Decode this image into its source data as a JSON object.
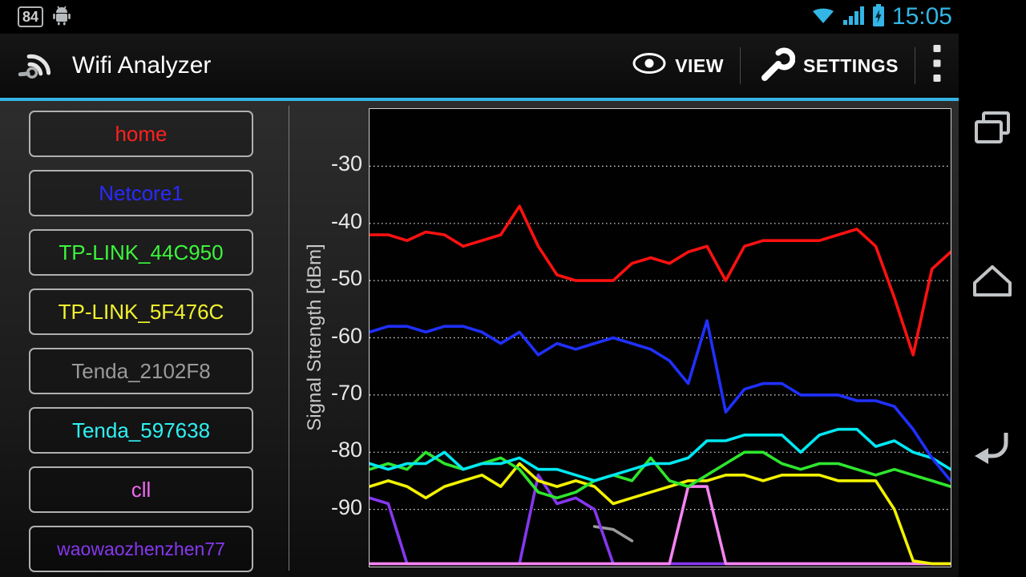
{
  "status_bar": {
    "badge": "84",
    "time": "15:05",
    "accent_color": "#33b5e5"
  },
  "action_bar": {
    "title": "Wifi Analyzer",
    "view_label": "VIEW",
    "settings_label": "SETTINGS"
  },
  "network_list": [
    {
      "label": "home",
      "color": "#ff2020"
    },
    {
      "label": "Netcore1",
      "color": "#2a2aff"
    },
    {
      "label": "TP-LINK_44C950",
      "color": "#3cf53c"
    },
    {
      "label": "TP-LINK_5F476C",
      "color": "#f2f22e"
    },
    {
      "label": "Tenda_2102F8",
      "color": "#9a9a9a"
    },
    {
      "label": "Tenda_597638",
      "color": "#2ef2f2"
    },
    {
      "label": "cll",
      "color": "#f06af0"
    },
    {
      "label": "waowaozhenzhen77",
      "color": "#8637f0"
    }
  ],
  "chart_data": {
    "type": "line",
    "title": "",
    "xlabel": "",
    "ylabel": "Signal Strength [dBm]",
    "yticks": [
      -30,
      -40,
      -50,
      -60,
      -70,
      -80,
      -90
    ],
    "ylim": [
      -100,
      -20
    ],
    "grid": "dotted-horizontal",
    "legend_position": "none",
    "background": "#010101",
    "series": [
      {
        "name": "Tenda_2102F8",
        "color": "#9a9a9a",
        "values": [
          null,
          null,
          null,
          null,
          null,
          null,
          null,
          null,
          null,
          null,
          null,
          null,
          -93,
          -93.5,
          -95.5,
          null,
          null,
          null,
          null,
          null,
          null,
          null,
          null,
          null,
          null,
          null,
          null,
          null,
          null,
          null,
          null,
          null
        ]
      },
      {
        "name": "waowaozhenzhen77",
        "color": "#8637f0",
        "values": [
          -88,
          -89,
          -99.5,
          -99.5,
          -99.5,
          -99.5,
          -99.5,
          -99.5,
          -99.5,
          -84,
          -89,
          -88,
          -90,
          -99.5,
          -99.5,
          -99.5,
          -99.5,
          -99.5,
          -99.5,
          -99.5,
          -99.5,
          -99.5,
          -99.5,
          -99.5,
          -99.5,
          -99.5,
          -99.5,
          -99.5,
          -99.5,
          -99.5,
          -99.5,
          -99.5
        ]
      },
      {
        "name": "cll",
        "color": "#f583f0",
        "values": [
          -99.5,
          -99.5,
          -99.5,
          -99.5,
          -99.5,
          -99.5,
          -99.5,
          -99.5,
          -99.5,
          -99.5,
          -99.5,
          -99.5,
          -99.5,
          -99.5,
          -99.5,
          -99.5,
          -99.5,
          -86,
          -86,
          -99.5,
          -99.5,
          -99.5,
          -99.5,
          -99.5,
          -99.5,
          -99.5,
          -99.5,
          -99.5,
          -99.5,
          -99.5,
          -99.5,
          -99.5
        ]
      },
      {
        "name": "TP-LINK_5F476C",
        "color": "#f2f200",
        "values": [
          -86,
          -85,
          -86,
          -88,
          -86,
          -85,
          -84,
          -86,
          -82,
          -85,
          -86,
          -85,
          -86,
          -89,
          -88,
          -87,
          -86,
          -85,
          -85,
          -84,
          -84,
          -85,
          -84,
          -84,
          -84,
          -85,
          -85,
          -85,
          -90,
          -99,
          -99.5,
          -99.5
        ]
      },
      {
        "name": "TP-LINK_44C950",
        "color": "#2ee62e",
        "values": [
          -83,
          -82,
          -83,
          -80,
          -82,
          -83,
          -82,
          -81,
          -83,
          -87,
          -88,
          -87,
          -85,
          -84,
          -85,
          -81,
          -85,
          -86,
          -84,
          -82,
          -80,
          -80,
          -82,
          -83,
          -82,
          -82,
          -83,
          -84,
          -83,
          -84,
          -85,
          -86
        ]
      },
      {
        "name": "Tenda_597638",
        "color": "#00e8f2",
        "values": [
          -82,
          -83,
          -82,
          -82,
          -80,
          -83,
          -82,
          -82,
          -81,
          -83,
          -83,
          -84,
          -85,
          -84,
          -83,
          -82,
          -82,
          -81,
          -78,
          -78,
          -77,
          -77,
          -77,
          -80,
          -77,
          -76,
          -76,
          -79,
          -78,
          -80,
          -81,
          -83
        ]
      },
      {
        "name": "Netcore1",
        "color": "#2030ff",
        "values": [
          -59,
          -58,
          -58,
          -59,
          -58,
          -58,
          -59,
          -61,
          -59,
          -63,
          -61,
          -62,
          -61,
          -60,
          -61,
          -62,
          -64,
          -68,
          -57,
          -73,
          -69,
          -68,
          -68,
          -70,
          -70,
          -70,
          -71,
          -71,
          -72,
          -76,
          -81,
          -85
        ]
      },
      {
        "name": "home",
        "color": "#ff1111",
        "values": [
          -42,
          -42,
          -43,
          -41.5,
          -42,
          -44,
          -43,
          -42,
          -37,
          -44,
          -49,
          -50,
          -50,
          -50,
          -47,
          -46,
          -47,
          -45,
          -44,
          -50,
          -44,
          -43,
          -43,
          -43,
          -43,
          -42,
          -41,
          -44,
          -53,
          -63,
          -48,
          -45
        ]
      }
    ]
  },
  "nav_bar": {
    "recents": "recents",
    "home": "home",
    "back": "back"
  }
}
